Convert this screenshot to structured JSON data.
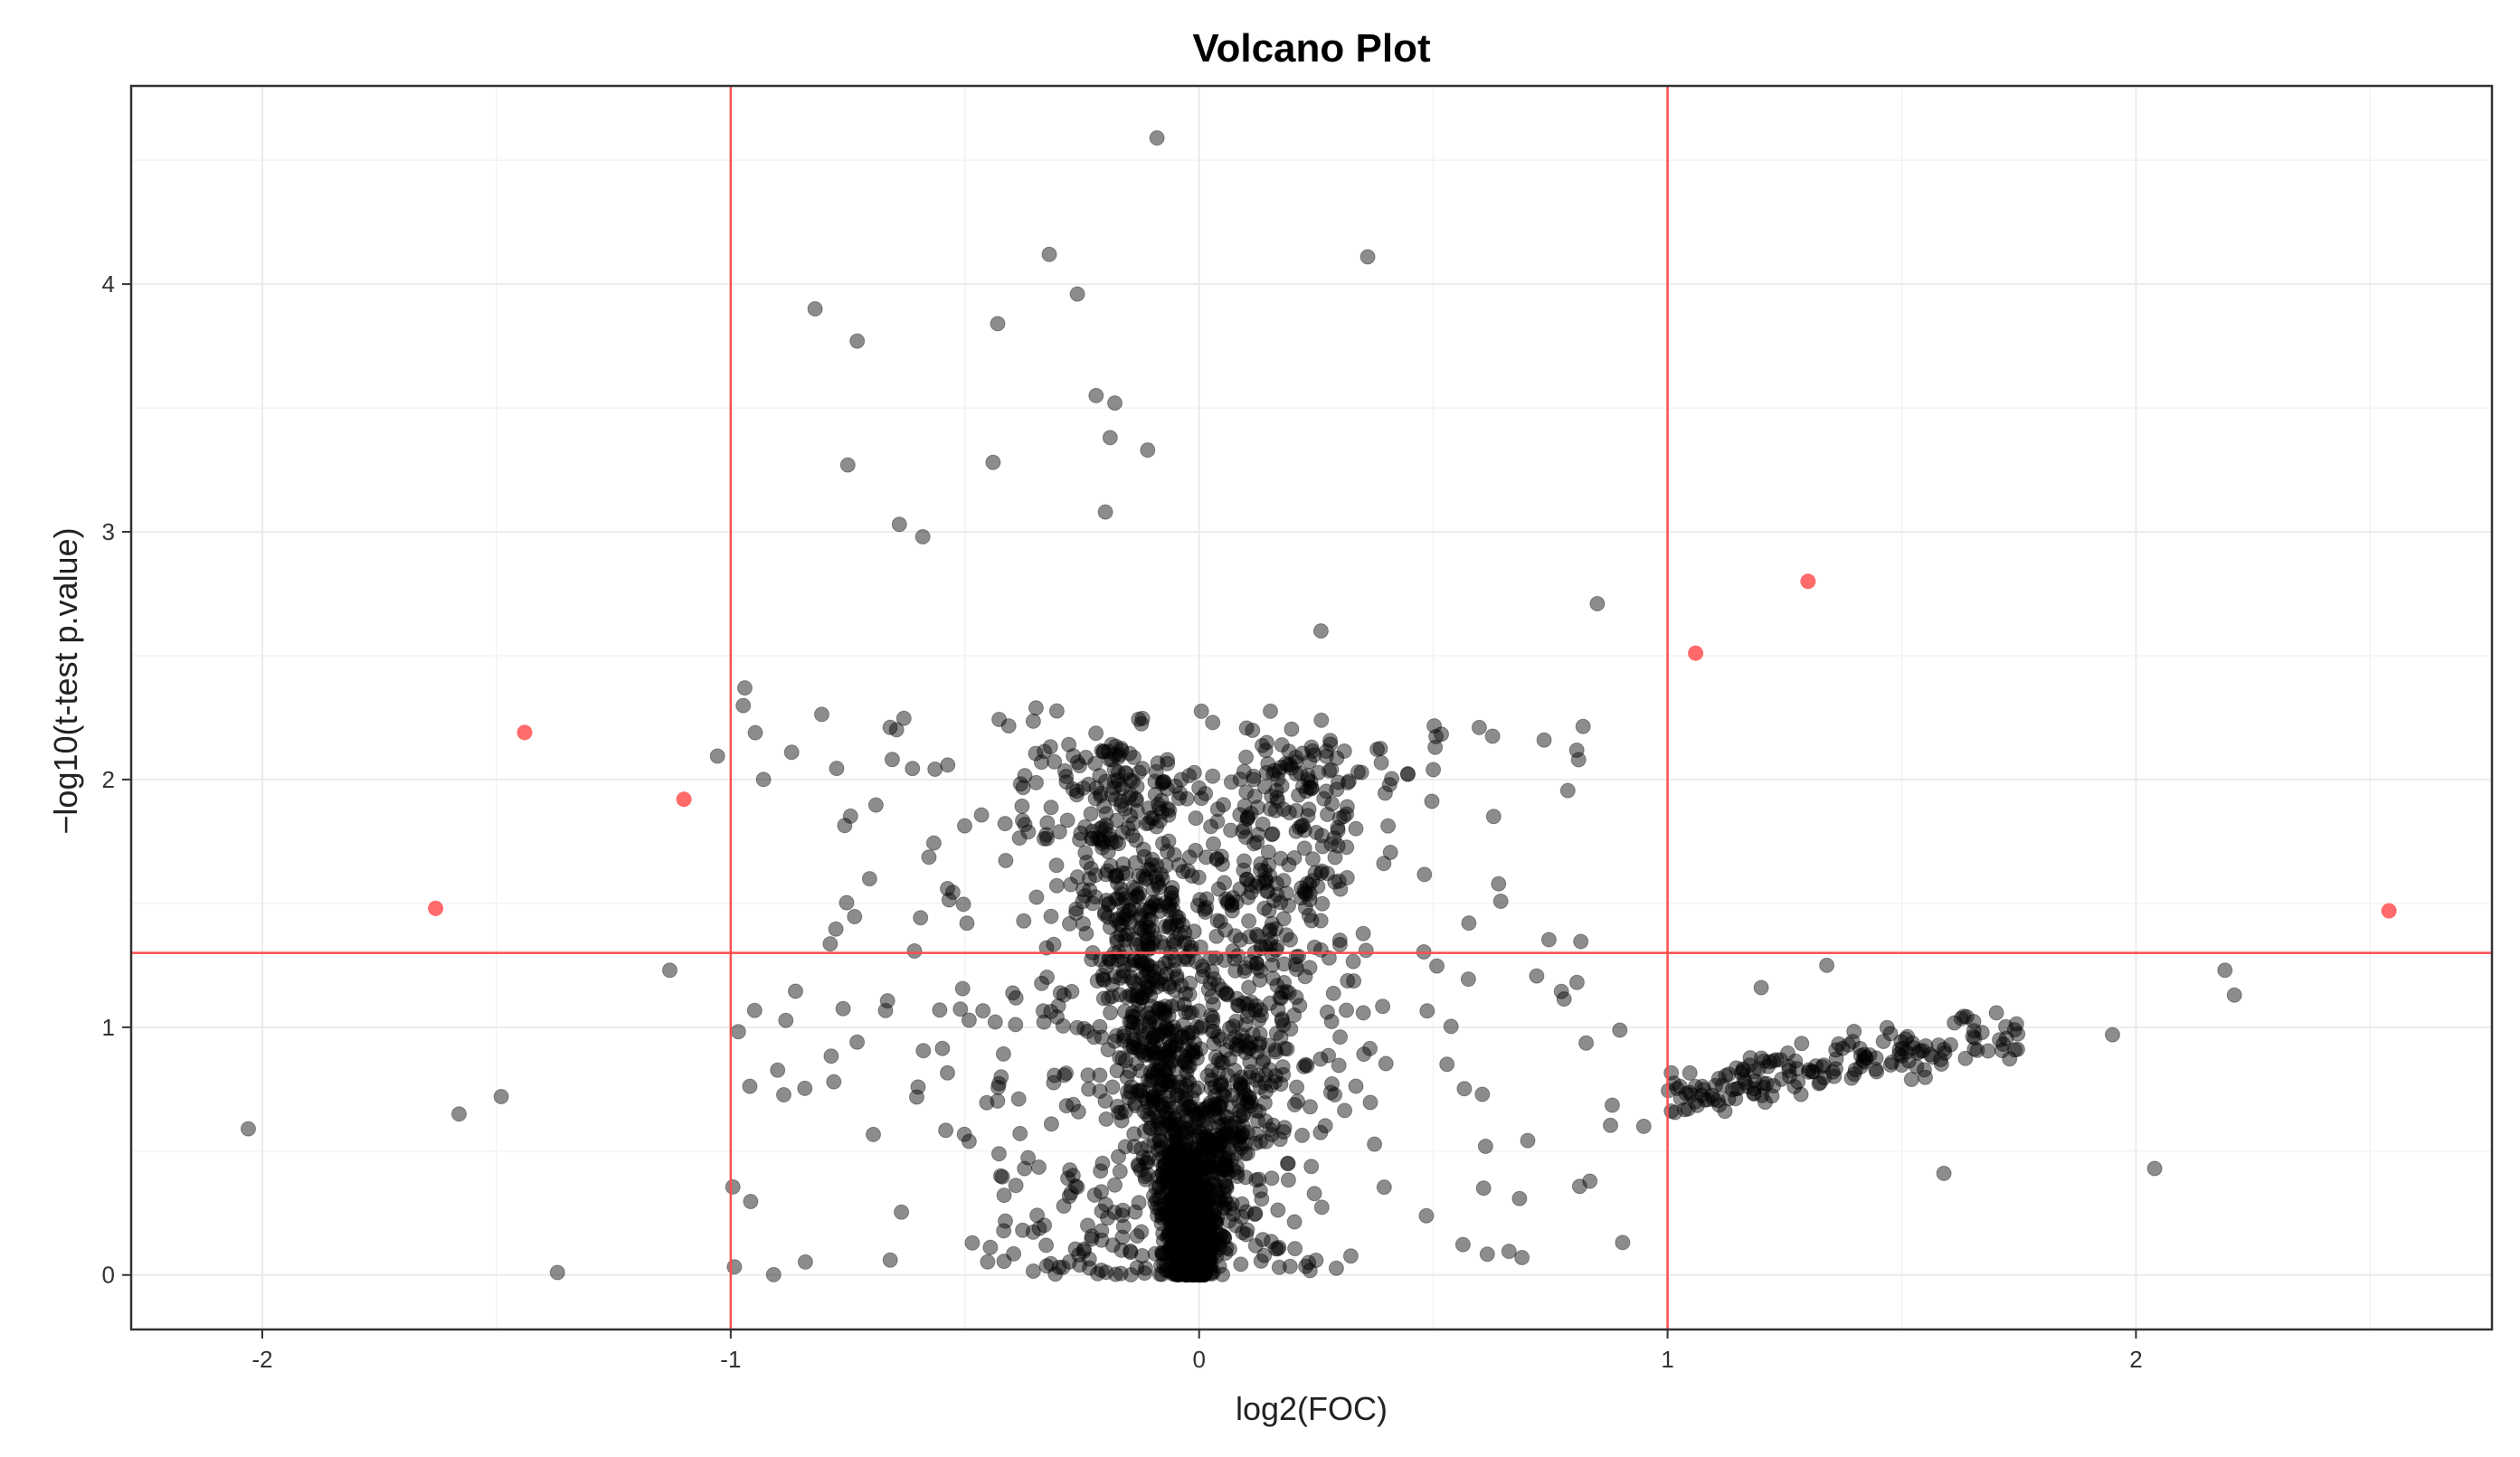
{
  "chart_data": {
    "type": "scatter",
    "title": "Volcano Plot",
    "xlabel": "log2(FOC)",
    "ylabel": "−log10(t-test p.value)",
    "xlim": [
      -2.28,
      2.76
    ],
    "ylim": [
      -0.22,
      4.8
    ],
    "x_ticks": [
      -2,
      -1,
      0,
      1,
      2
    ],
    "y_ticks": [
      0,
      1,
      2,
      3,
      4
    ],
    "grid": true,
    "legend": "none",
    "thresholds": {
      "vertical": [
        -1,
        1
      ],
      "horizontal": [
        1.3
      ],
      "color": "#ff4d4d"
    },
    "colors": {
      "point": "#000000",
      "significant": "#ff5a5a",
      "threshold": "#ff4d4d",
      "grid": "#ebebeb",
      "frame": "#333333"
    },
    "significant_points": [
      {
        "x": -1.63,
        "y": 1.48
      },
      {
        "x": -1.44,
        "y": 2.19
      },
      {
        "x": -1.1,
        "y": 1.92
      },
      {
        "x": 1.06,
        "y": 2.51
      },
      {
        "x": 1.3,
        "y": 2.8
      },
      {
        "x": 2.54,
        "y": 1.47
      }
    ],
    "highlighted_points": [
      {
        "x": -0.09,
        "y": 4.59
      },
      {
        "x": -0.32,
        "y": 4.12
      },
      {
        "x": 0.36,
        "y": 4.11
      },
      {
        "x": -0.26,
        "y": 3.96
      },
      {
        "x": -0.82,
        "y": 3.9
      },
      {
        "x": -0.43,
        "y": 3.84
      },
      {
        "x": -0.73,
        "y": 3.77
      },
      {
        "x": -0.22,
        "y": 3.55
      },
      {
        "x": -0.18,
        "y": 3.52
      },
      {
        "x": -0.19,
        "y": 3.38
      },
      {
        "x": -0.11,
        "y": 3.33
      },
      {
        "x": -0.44,
        "y": 3.28
      },
      {
        "x": -0.75,
        "y": 3.27
      },
      {
        "x": -0.2,
        "y": 3.08
      },
      {
        "x": -0.64,
        "y": 3.03
      },
      {
        "x": -0.59,
        "y": 2.98
      },
      {
        "x": 0.85,
        "y": 2.71
      },
      {
        "x": 0.26,
        "y": 2.6
      },
      {
        "x": -2.03,
        "y": 0.59
      },
      {
        "x": -1.37,
        "y": 0.01
      },
      {
        "x": -1.58,
        "y": 0.65
      },
      {
        "x": -1.49,
        "y": 0.72
      },
      {
        "x": -1.13,
        "y": 1.23
      },
      {
        "x": -0.97,
        "y": 2.37
      },
      {
        "x": -0.93,
        "y": 2.0
      },
      {
        "x": -0.87,
        "y": 2.11
      },
      {
        "x": 2.19,
        "y": 1.23
      },
      {
        "x": 2.21,
        "y": 1.13
      },
      {
        "x": 1.95,
        "y": 0.97
      },
      {
        "x": 2.04,
        "y": 0.43
      },
      {
        "x": 1.59,
        "y": 0.41
      },
      {
        "x": 1.34,
        "y": 1.25
      },
      {
        "x": 1.2,
        "y": 1.16
      },
      {
        "x": 0.5,
        "y": 2.04
      },
      {
        "x": 0.81,
        "y": 2.08
      }
    ],
    "bulk_points": {
      "count": 2400,
      "note": "dense cluster of non-significant points"
    }
  }
}
